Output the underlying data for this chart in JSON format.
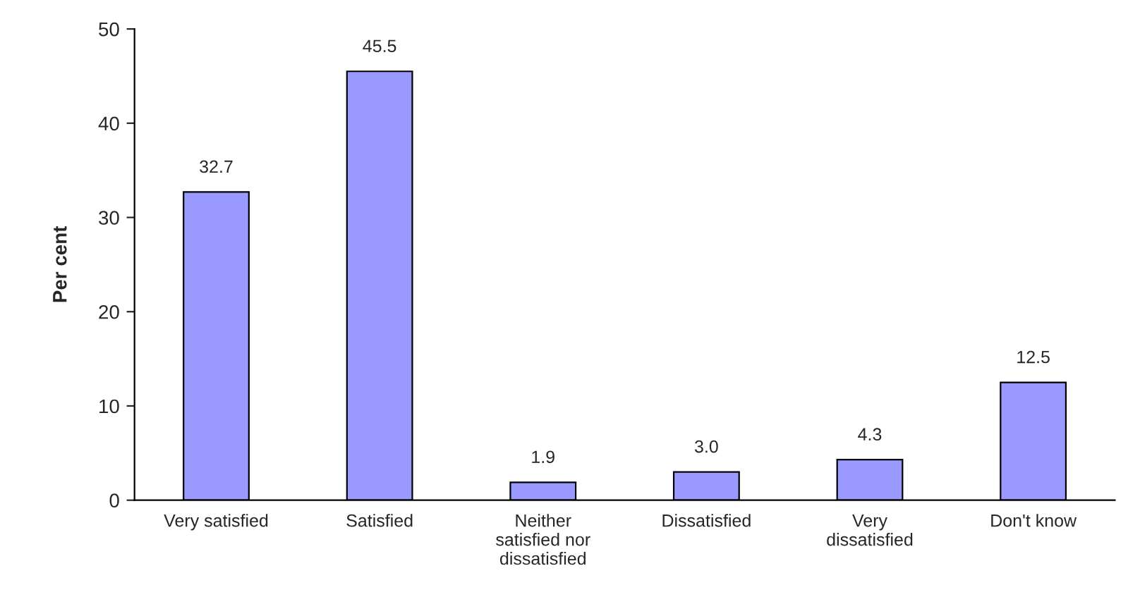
{
  "chart_data": {
    "type": "bar",
    "ylabel": "Per cent",
    "categories": [
      "Very satisfied",
      "Satisfied",
      "Neither satisfied nor dissatisfied",
      "Dissatisfied",
      "Very dissatisfied",
      "Don't know"
    ],
    "values": [
      32.7,
      45.5,
      1.9,
      3.0,
      4.3,
      12.5
    ],
    "value_labels": [
      "32.7",
      "45.5",
      "1.9",
      "3.0",
      "4.3",
      "12.5"
    ],
    "color": "#9999ff",
    "ylim": [
      0,
      50
    ],
    "yticks": [
      0,
      10,
      20,
      30,
      40,
      50
    ],
    "grid": false,
    "legend": false
  }
}
